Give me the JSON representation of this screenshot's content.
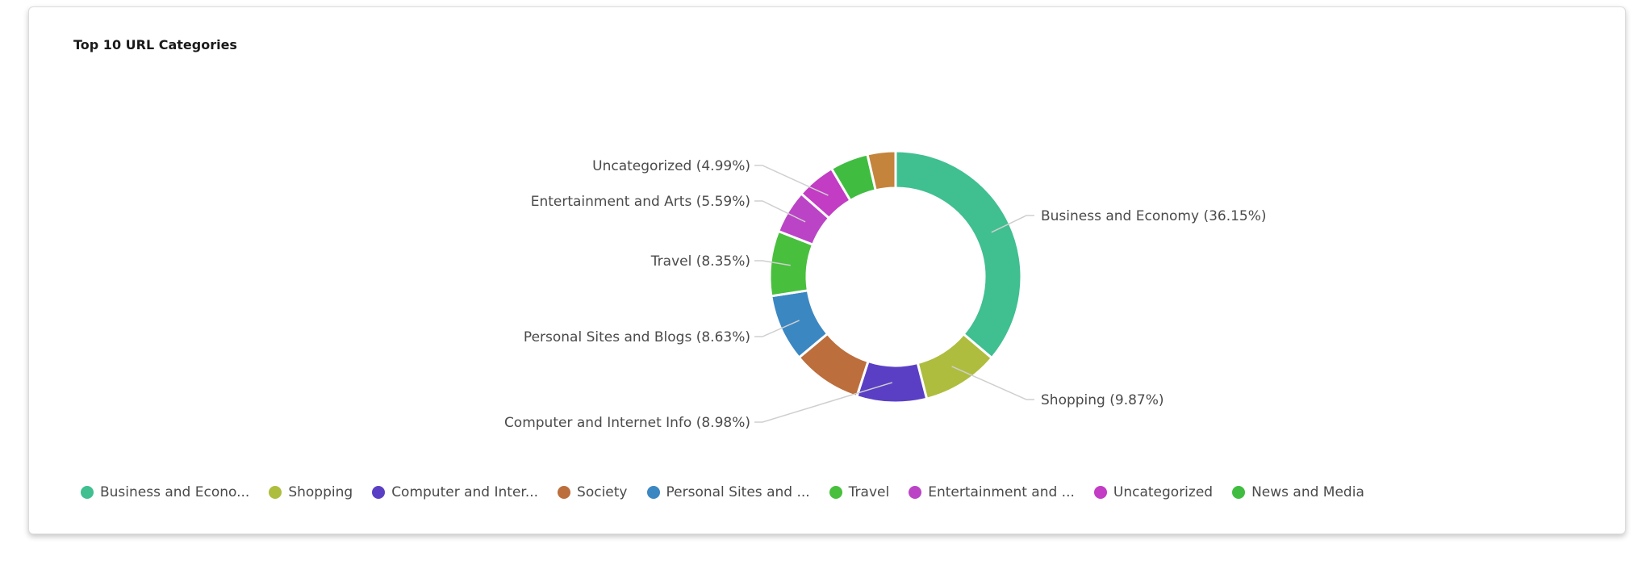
{
  "card": {
    "title": "Top 10 URL Categories"
  },
  "chart_data": {
    "type": "pie",
    "title": "Top 10 URL Categories",
    "donut": true,
    "slices": [
      {
        "name": "Business and Economy",
        "value": 36.15,
        "label": "Business and Economy (36.15%)",
        "legend": "Business and Econo...",
        "color": "#40bf91"
      },
      {
        "name": "Shopping",
        "value": 9.87,
        "label": "Shopping (9.87%)",
        "legend": "Shopping",
        "color": "#aebd3e"
      },
      {
        "name": "Computer and Internet Info",
        "value": 8.98,
        "label": "Computer and Internet Info (8.98%)",
        "legend": "Computer and Inter...",
        "color": "#5a3fc4"
      },
      {
        "name": "Society",
        "value": 8.93,
        "label": "",
        "legend": "Society",
        "color": "#bc6e3c"
      },
      {
        "name": "Personal Sites and Blogs",
        "value": 8.63,
        "label": "Personal Sites and Blogs (8.63%)",
        "legend": "Personal Sites and ...",
        "color": "#3b87c2"
      },
      {
        "name": "Travel",
        "value": 8.35,
        "label": "Travel (8.35%)",
        "legend": "Travel",
        "color": "#49bf3e"
      },
      {
        "name": "Entertainment and Arts",
        "value": 5.59,
        "label": "Entertainment and Arts (5.59%)",
        "legend": "Entertainment and ...",
        "color": "#bb44c6"
      },
      {
        "name": "Uncategorized",
        "value": 4.99,
        "label": "Uncategorized (4.99%)",
        "legend": "Uncategorized",
        "color": "#c23cc4"
      },
      {
        "name": "News and Media",
        "value": 4.9,
        "label": "",
        "legend": "News and Media",
        "color": "#40bd41"
      },
      {
        "name": "",
        "value": 3.61,
        "label": "",
        "legend": "",
        "color": "#c4843c"
      }
    ],
    "legend_position": "bottom"
  }
}
